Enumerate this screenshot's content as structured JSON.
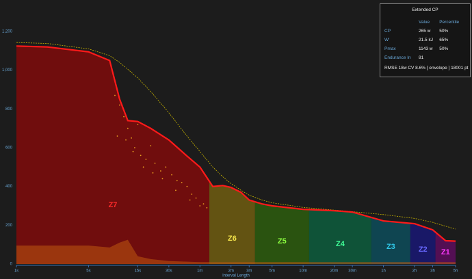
{
  "chart_data": {
    "type": "cp-curve",
    "x_label": "Interval Length",
    "xlog": true,
    "xlim": [
      1,
      18000
    ],
    "xticks": [
      {
        "value": 1,
        "label": "1s"
      },
      {
        "value": 5,
        "label": "5s"
      },
      {
        "value": 15,
        "label": "15s"
      },
      {
        "value": 30,
        "label": "30s"
      },
      {
        "value": 60,
        "label": "1m"
      },
      {
        "value": 120,
        "label": "2m"
      },
      {
        "value": 180,
        "label": "3m"
      },
      {
        "value": 300,
        "label": "5m"
      },
      {
        "value": 600,
        "label": "10m"
      },
      {
        "value": 1200,
        "label": "20m"
      },
      {
        "value": 1800,
        "label": "30m"
      },
      {
        "value": 3600,
        "label": "1h"
      },
      {
        "value": 7200,
        "label": "2h"
      },
      {
        "value": 10800,
        "label": "3h"
      },
      {
        "value": 18000,
        "label": "5h"
      }
    ],
    "ylim": [
      0,
      1200
    ],
    "yticks": [
      0,
      200,
      400,
      600,
      800,
      {
        "value": 1000,
        "label": "1,000"
      },
      {
        "value": 1200,
        "label": "1,200"
      }
    ],
    "x": [
      1,
      2,
      5,
      8,
      10,
      12,
      15,
      20,
      30,
      45,
      60,
      80,
      100,
      120,
      150,
      180,
      240,
      300,
      600,
      1200,
      1800,
      3600,
      7200,
      10800,
      14400,
      18000
    ],
    "series": [
      {
        "color": "#ff1a1a",
        "values": [
          1125,
          1120,
          1095,
          1050,
          850,
          740,
          735,
          700,
          640,
          557,
          500,
          400,
          405,
          395,
          370,
          330,
          310,
          300,
          282,
          275,
          268,
          222,
          208,
          176,
          120,
          118
        ]
      },
      {
        "color": "#c8b400",
        "dashed": true,
        "values": [
          1143,
          1138,
          1110,
          1075,
          1040,
          1005,
          960,
          890,
          780,
          660,
          580,
          500,
          450,
          415,
          380,
          355,
          330,
          316,
          292,
          278,
          270,
          255,
          235,
          215,
          195,
          180
        ]
      },
      {
        "color": "#c05a10",
        "values": [
          95,
          95,
          95,
          85,
          110,
          125,
          40,
          25,
          15,
          12,
          10,
          10,
          10,
          10,
          10,
          10,
          10,
          10,
          10,
          10,
          10,
          10,
          10,
          10,
          10,
          10
        ]
      }
    ],
    "points": {
      "color": "#e8a020",
      "x": [
        9,
        10,
        11,
        12,
        13,
        14,
        15,
        16,
        18,
        20,
        22,
        25,
        28,
        32,
        36,
        40,
        45,
        50,
        55,
        60,
        9.5,
        11.5,
        13.5,
        17,
        21,
        26,
        35,
        48,
        65,
        70
      ],
      "y": [
        870,
        820,
        760,
        700,
        650,
        600,
        720,
        560,
        540,
        610,
        520,
        480,
        500,
        460,
        430,
        420,
        400,
        360,
        340,
        300,
        660,
        640,
        580,
        500,
        470,
        440,
        380,
        330,
        310,
        290
      ]
    },
    "zones": [
      {
        "name": "Z7",
        "start": 1,
        "end": 74,
        "color": "#7a0c0c",
        "label_color": "#ff2a2a"
      },
      {
        "name": "Z6",
        "start": 74,
        "end": 205,
        "color": "#6b5a12",
        "label_color": "#f2e24a"
      },
      {
        "name": "Z5",
        "start": 205,
        "end": 686,
        "color": "#2c5a10",
        "label_color": "#8cff40"
      },
      {
        "name": "Z4",
        "start": 686,
        "end": 2750,
        "color": "#0e5a3c",
        "label_color": "#40ff98"
      },
      {
        "name": "Z3",
        "start": 2750,
        "end": 6560,
        "color": "#0e4a58",
        "label_color": "#30c8e8"
      },
      {
        "name": "Z2",
        "start": 6560,
        "end": 11500,
        "color": "#1a1870",
        "label_color": "#6868ff"
      },
      {
        "name": "Z1",
        "start": 11500,
        "end": 18000,
        "color": "#5a0e5a",
        "label_color": "#ff38ff"
      }
    ],
    "table": {
      "title": "Extended CP",
      "headers": [
        "Value",
        "Percentile"
      ],
      "rows": [
        [
          "CP",
          "265 w",
          "50%"
        ],
        [
          "W'",
          "21.5 kJ",
          "65%"
        ],
        [
          "Pmax",
          "1143 w",
          "50%"
        ],
        [
          "Endurance In",
          "81",
          ""
        ]
      ],
      "footer": "RMSE 18w CV 8.6% [ envelope ] 18001 pt"
    }
  }
}
